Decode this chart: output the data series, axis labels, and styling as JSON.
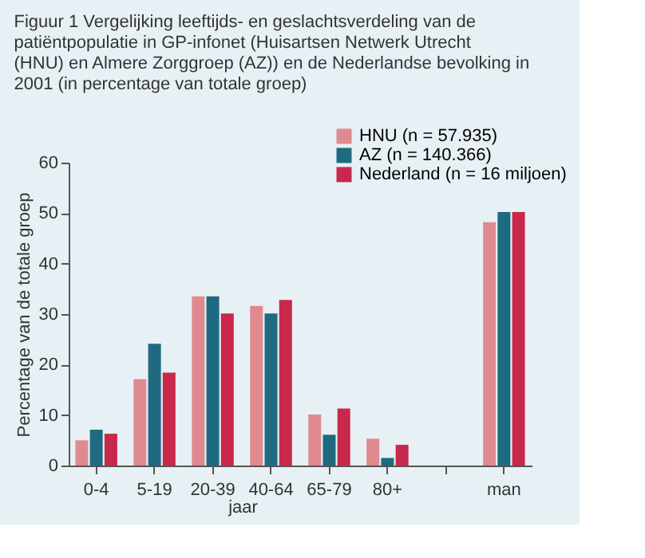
{
  "chart_data": {
    "type": "bar",
    "title": "Figuur 1 Vergelijking leeftijds- en geslachtsverdeling van de patiëntpopulatie in GP-infonet (Huisartsen Netwerk Utrecht (HNU) en Almere Zorggroep (AZ)) en de Nederlandse bevolking in 2001 (in percentage van totale groep)",
    "xlabel": "jaar",
    "ylabel": "Percentage van de totale groep",
    "categories": [
      "0-4",
      "5-19",
      "20-39",
      "40-64",
      "65-79",
      "80+",
      null,
      "man"
    ],
    "series": [
      {
        "name": "HNU (n = 57.935)",
        "color": "#e08a8f",
        "values": [
          5.0,
          17.1,
          33.5,
          31.6,
          10.1,
          5.3,
          null,
          48.2
        ]
      },
      {
        "name": "AZ (n = 140.366)",
        "color": "#1f6a80",
        "values": [
          7.1,
          24.1,
          33.5,
          30.1,
          6.1,
          1.5,
          null,
          50.2
        ]
      },
      {
        "name": "Nederland (n = 16 miljoen)",
        "color": "#c8284b",
        "values": [
          6.3,
          18.4,
          30.1,
          32.8,
          11.3,
          4.1,
          null,
          50.2
        ]
      }
    ],
    "ylim": [
      0,
      60
    ],
    "yticks": [
      0,
      10,
      20,
      30,
      40,
      50,
      60
    ],
    "grid": false,
    "legend": "top right"
  }
}
